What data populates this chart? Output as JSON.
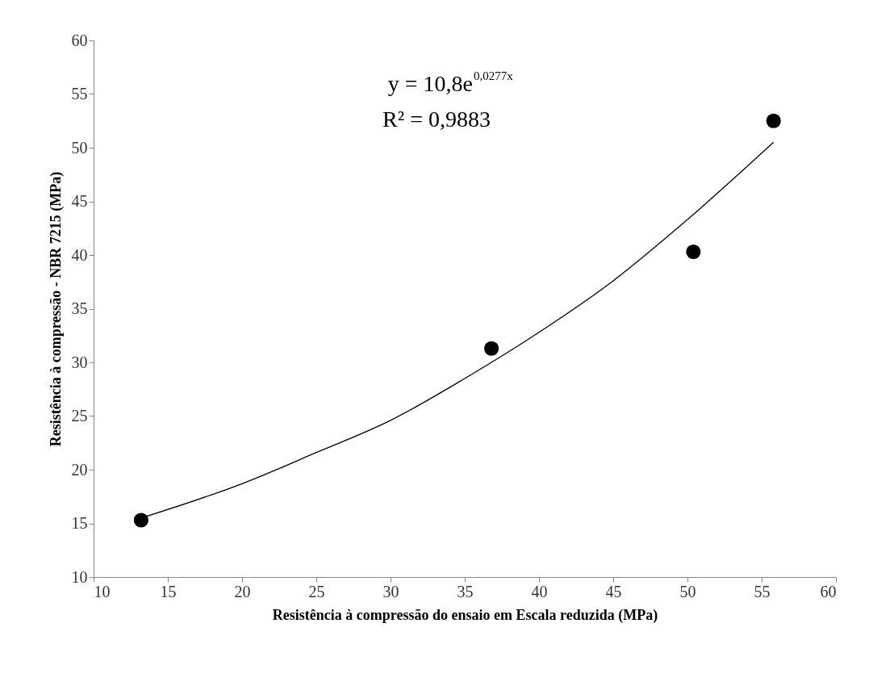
{
  "chart_data": {
    "type": "scatter",
    "xlabel": "Resistência à compressão do ensaio em Escala reduzida (MPa)",
    "ylabel": "Resistência à compressão - NBR 7215 (MPa)",
    "xlim": [
      10,
      60
    ],
    "xticks": [
      10,
      15,
      20,
      25,
      30,
      35,
      40,
      45,
      50,
      55,
      60
    ],
    "ylim": [
      10,
      60
    ],
    "yticks": [
      10,
      15,
      20,
      25,
      30,
      35,
      40,
      45,
      50,
      55,
      60
    ],
    "grid": false,
    "annotations": [
      "y = 10,8e$^{0,0277x}$",
      "R² = 0,9883"
    ],
    "series": [
      {
        "color": "#000000",
        "marker": "circle",
        "x": [
          13.2,
          36.8,
          50.4,
          55.8
        ],
        "values": [
          15.3,
          31.3,
          40.3,
          52.5
        ]
      },
      {
        "type": "line",
        "color": "#000000",
        "line_style": "solid",
        "marker": "none",
        "x": [
          13.2,
          20,
          25,
          30,
          35,
          40,
          45,
          50,
          55.8
        ],
        "values": [
          15.5,
          18.7,
          21.6,
          24.6,
          28.5,
          32.8,
          37.6,
          43.3,
          50.5
        ]
      }
    ]
  }
}
